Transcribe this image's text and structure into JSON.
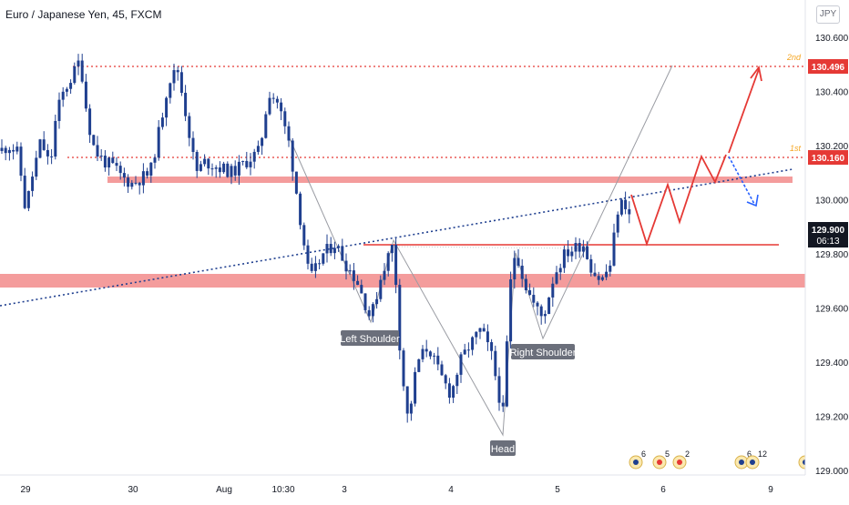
{
  "header": {
    "title": "Euro / Japanese Yen, 45, FXCM",
    "currency": "JPY"
  },
  "chart_data": {
    "type": "candlestick",
    "symbol": "Euro / Japanese Yen",
    "timeframe": "45",
    "broker": "FXCM",
    "ylim": [
      129.0,
      130.65
    ],
    "y_ticks": [
      "130.600",
      "130.400",
      "130.200",
      "130.000",
      "129.800",
      "129.600",
      "129.400",
      "129.200",
      "129.000"
    ],
    "x_ticks": [
      "29",
      "30",
      "Aug",
      "10:30",
      "3",
      "4",
      "5",
      "6",
      "9"
    ],
    "last_price": "129.900",
    "countdown": "06:13",
    "targets": [
      {
        "label": "2nd",
        "value": "130.496"
      },
      {
        "label": "1st",
        "value": "130.160"
      }
    ],
    "annotations": [
      "Left Shoulder",
      "Head",
      "Right Shoulder"
    ],
    "event_icons": [
      {
        "count": "6"
      },
      {
        "count": "5"
      },
      {
        "count": "2"
      },
      {
        "count": "6"
      },
      {
        "count": "12"
      },
      {
        "count": ""
      }
    ],
    "colors": {
      "bullish": "#26a69a",
      "bearish": "#1f3f8f",
      "candle": "#1f3f8f",
      "target_line": "#e53935",
      "zone": "#f28b8b",
      "trendline": "#1f3f8f",
      "projection": "#e53935",
      "projection_alt": "#2962ff",
      "label_bg": "#6b6f7b",
      "price_badge": "#131722"
    }
  }
}
